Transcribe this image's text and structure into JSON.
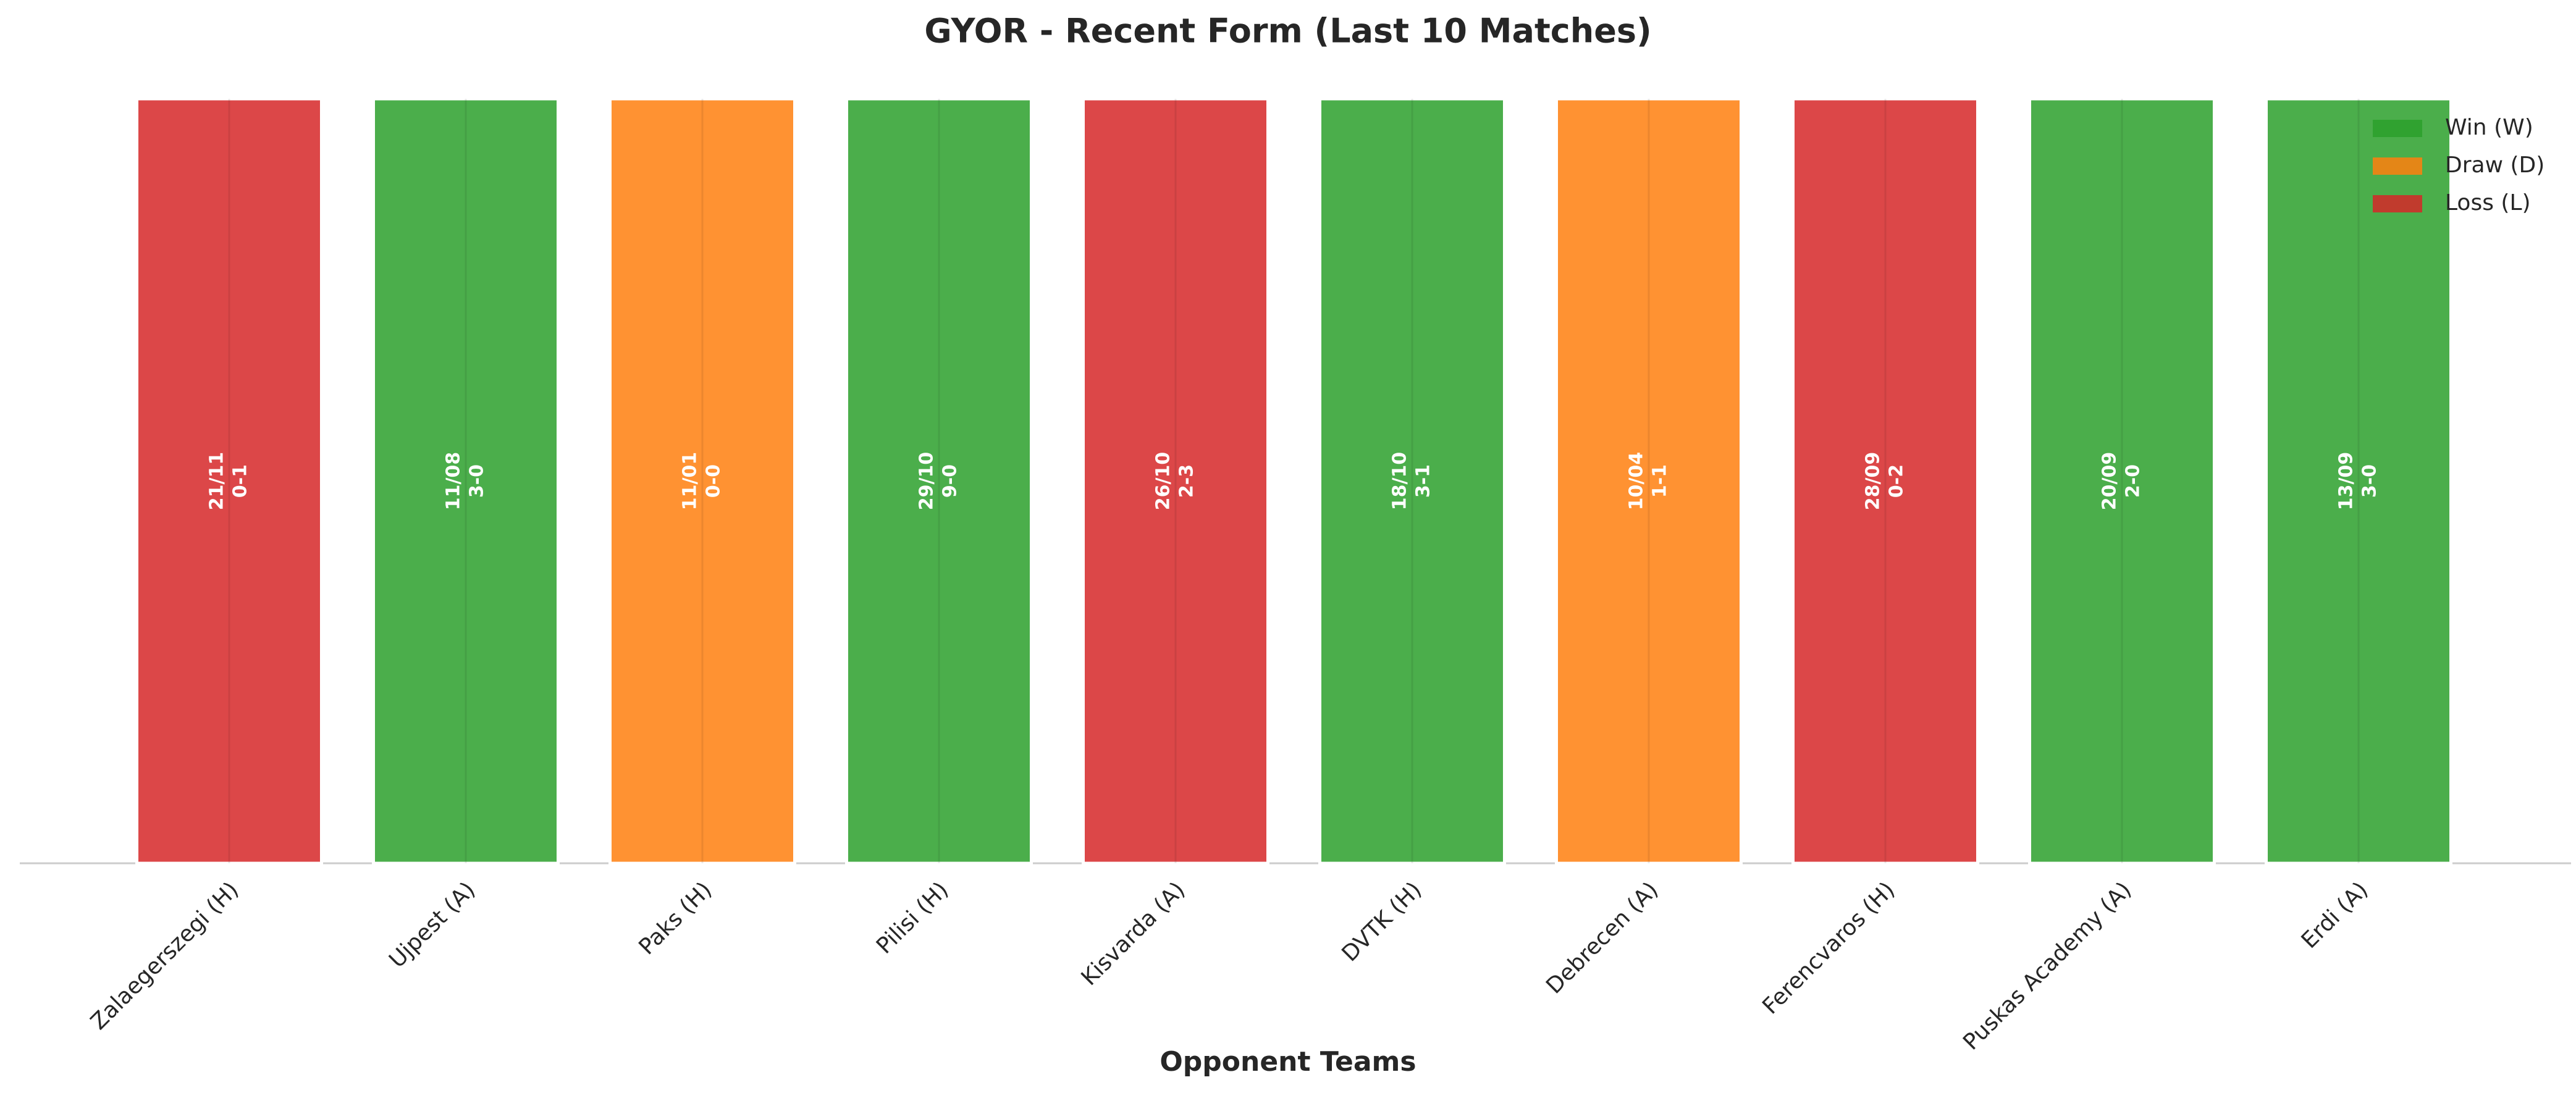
{
  "chart_data": {
    "type": "bar",
    "title": "GYOR - Recent Form (Last 10 Matches)",
    "x_label": "Opponent Teams",
    "categories": [
      "Zalaegerszegi (H)",
      "Ujpest (A)",
      "Paks (H)",
      "Pilisi (H)",
      "Kisvarda (A)",
      "DVTK (H)",
      "Debrecen (A)",
      "Ferencvaros (H)",
      "Puskas Academy (A)",
      "Erdi (A)"
    ],
    "values": [
      1,
      1,
      1,
      1,
      1,
      1,
      1,
      1,
      1,
      1
    ],
    "ylim": [
      0,
      1
    ],
    "dates": [
      "21/11",
      "11/08",
      "11/01",
      "29/10",
      "26/10",
      "18/10",
      "10/04",
      "28/09",
      "20/09",
      "13/09"
    ],
    "scores": [
      "0-1",
      "3-0",
      "0-0",
      "9-0",
      "2-3",
      "3-1",
      "1-1",
      "0-2",
      "2-0",
      "3-0"
    ],
    "colors": [
      "#d62728",
      "#2ca02c",
      "#ff7f0e",
      "#2ca02c",
      "#d62728",
      "#2ca02c",
      "#ff7f0e",
      "#d62728",
      "#2ca02c",
      "#2ca02c"
    ],
    "legend": [
      {
        "name": "Win (W)",
        "color": "#2ca02c"
      },
      {
        "name": "Draw (D)",
        "color": "#ff7f0e"
      },
      {
        "name": "Loss (L)",
        "color": "#d62728"
      }
    ],
    "legend_position": "upper right",
    "grid": true
  }
}
